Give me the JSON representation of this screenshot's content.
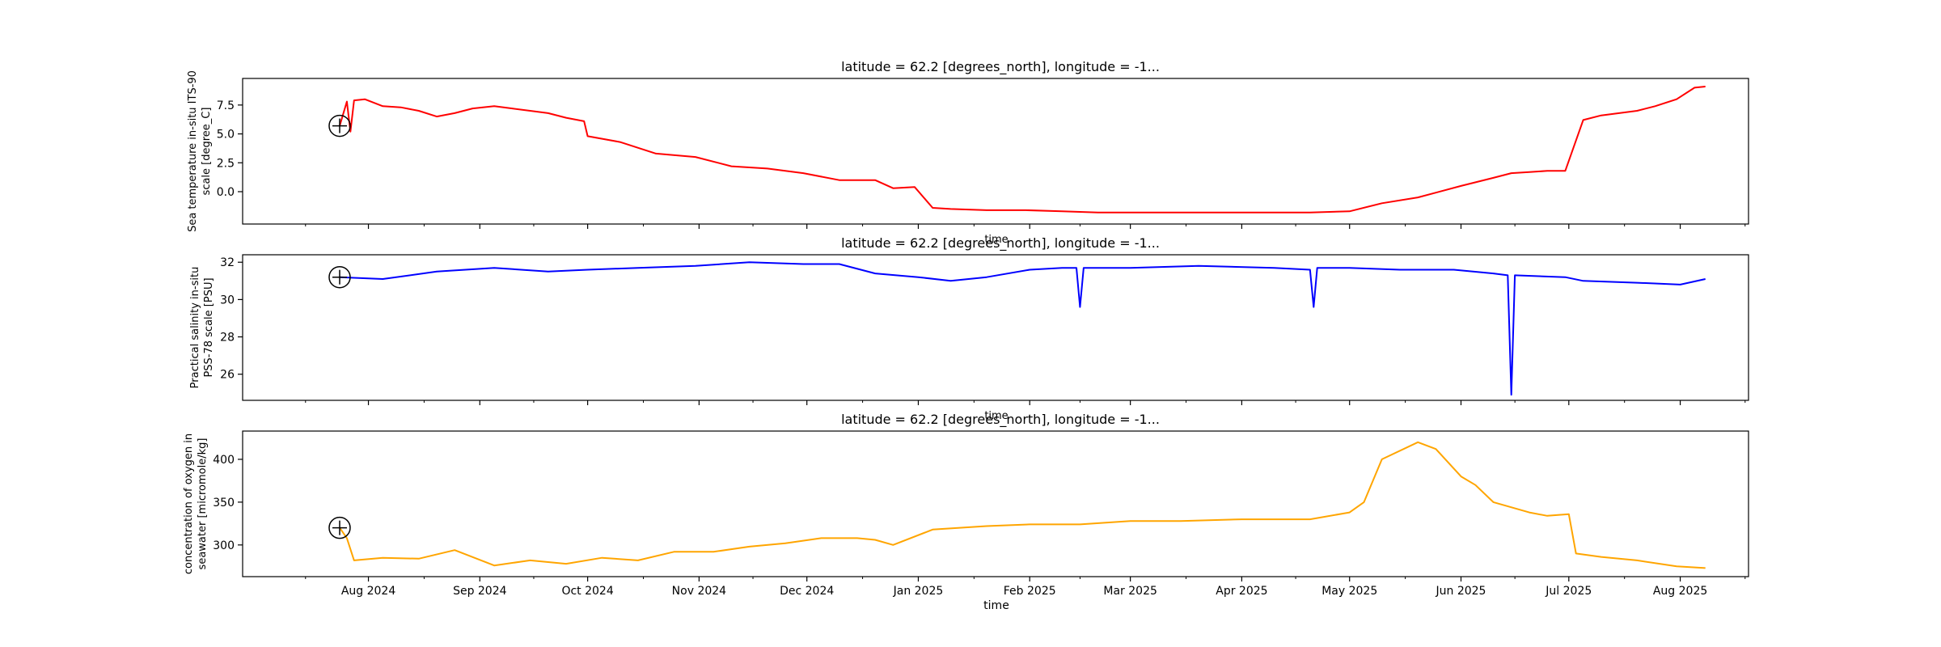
{
  "chart_data": [
    {
      "type": "line",
      "title": "latitude = 62.2 [degrees_north], longitude = -1...",
      "xlabel": "time",
      "ylabel": [
        "Sea temperature in-situ ITS-90",
        "scale [degree_C]"
      ],
      "x_range": [
        "2024-06-27",
        "2025-08-20"
      ],
      "ylim": [
        -2.8,
        9.8
      ],
      "yticks": [
        "0.0",
        "2.5",
        "5.0",
        "7.5"
      ],
      "color": "#ff0000",
      "marker": {
        "x": "2024-07-24",
        "y": 5.7
      },
      "series": [
        {
          "x": [
            "2024-07-24",
            "2024-07-26",
            "2024-07-27",
            "2024-07-28",
            "2024-07-31",
            "2024-08-05",
            "2024-08-10",
            "2024-08-15",
            "2024-08-20",
            "2024-08-25",
            "2024-08-30",
            "2024-09-05",
            "2024-09-10",
            "2024-09-15",
            "2024-09-20",
            "2024-09-25",
            "2024-09-30",
            "2024-10-01",
            "2024-10-10",
            "2024-10-20",
            "2024-10-31",
            "2024-11-10",
            "2024-11-20",
            "2024-11-30",
            "2024-12-10",
            "2024-12-20",
            "2024-12-25",
            "2024-12-31",
            "2025-01-05",
            "2025-01-10",
            "2025-01-20",
            "2025-01-31",
            "2025-02-10",
            "2025-02-20",
            "2025-03-10",
            "2025-04-01",
            "2025-04-20",
            "2025-05-01",
            "2025-05-10",
            "2025-05-20",
            "2025-06-01",
            "2025-06-10",
            "2025-06-15",
            "2025-06-20",
            "2025-06-25",
            "2025-06-30",
            "2025-07-05",
            "2025-07-10",
            "2025-07-20",
            "2025-07-25",
            "2025-07-31",
            "2025-08-05",
            "2025-08-08"
          ],
          "values": [
            5.7,
            7.8,
            5.2,
            7.9,
            8.0,
            7.4,
            7.3,
            7.0,
            6.5,
            6.8,
            7.2,
            7.4,
            7.2,
            7.0,
            6.8,
            6.4,
            6.1,
            4.8,
            4.3,
            3.3,
            3.0,
            2.2,
            2.0,
            1.6,
            1.0,
            1.0,
            0.3,
            0.4,
            -1.4,
            -1.5,
            -1.6,
            -1.6,
            -1.7,
            -1.8,
            -1.8,
            -1.8,
            -1.8,
            -1.7,
            -1.0,
            -0.5,
            0.5,
            1.2,
            1.6,
            1.7,
            1.8,
            1.8,
            6.2,
            6.6,
            7.0,
            7.4,
            8.0,
            9.0,
            9.1
          ]
        }
      ]
    },
    {
      "type": "line",
      "title": "latitude = 62.2 [degrees_north], longitude = -1...",
      "xlabel": "time",
      "ylabel": [
        "Practical salinity in-situ",
        "PSS-78 scale [PSU]"
      ],
      "x_range": [
        "2024-06-27",
        "2025-08-20"
      ],
      "ylim": [
        24.6,
        32.4
      ],
      "yticks": [
        "26",
        "28",
        "30",
        "32"
      ],
      "color": "#0000ff",
      "marker": {
        "x": "2024-07-24",
        "y": 31.2
      },
      "series": [
        {
          "x": [
            "2024-07-24",
            "2024-08-05",
            "2024-08-20",
            "2024-09-05",
            "2024-09-20",
            "2024-10-01",
            "2024-10-15",
            "2024-10-31",
            "2024-11-15",
            "2024-11-30",
            "2024-12-10",
            "2024-12-20",
            "2025-01-01",
            "2025-01-10",
            "2025-01-20",
            "2025-02-01",
            "2025-02-10",
            "2025-02-14",
            "2025-02-15",
            "2025-02-16",
            "2025-03-01",
            "2025-03-20",
            "2025-04-10",
            "2025-04-20",
            "2025-04-21",
            "2025-04-22",
            "2025-05-01",
            "2025-05-15",
            "2025-05-30",
            "2025-06-10",
            "2025-06-14",
            "2025-06-15",
            "2025-06-16",
            "2025-06-30",
            "2025-07-05",
            "2025-07-20",
            "2025-08-01",
            "2025-08-08"
          ],
          "values": [
            31.2,
            31.1,
            31.5,
            31.7,
            31.5,
            31.6,
            31.7,
            31.8,
            32.0,
            31.9,
            31.9,
            31.4,
            31.2,
            31.0,
            31.2,
            31.6,
            31.7,
            31.7,
            29.6,
            31.7,
            31.7,
            31.8,
            31.7,
            31.6,
            29.6,
            31.7,
            31.7,
            31.6,
            31.6,
            31.4,
            31.3,
            24.9,
            31.3,
            31.2,
            31.0,
            30.9,
            30.8,
            31.1
          ]
        }
      ]
    },
    {
      "type": "line",
      "title": "latitude = 62.2 [degrees_north], longitude = -1...",
      "xlabel": "time",
      "ylabel": [
        "concentration of oxygen in",
        "seawater [micromole/kg]"
      ],
      "x_range": [
        "2024-06-27",
        "2025-08-20"
      ],
      "ylim": [
        263,
        433
      ],
      "yticks": [
        "300",
        "350",
        "400"
      ],
      "xticks": [
        "Aug 2024",
        "Sep 2024",
        "Oct 2024",
        "Nov 2024",
        "Dec 2024",
        "Jan 2025",
        "Feb 2025",
        "Mar 2025",
        "Apr 2025",
        "May 2025",
        "Jun 2025",
        "Jul 2025",
        "Aug 2025"
      ],
      "color": "#ffa500",
      "marker": {
        "x": "2024-07-24",
        "y": 320
      },
      "series": [
        {
          "x": [
            "2024-07-24",
            "2024-07-26",
            "2024-07-28",
            "2024-08-05",
            "2024-08-15",
            "2024-08-25",
            "2024-09-05",
            "2024-09-15",
            "2024-09-25",
            "2024-10-05",
            "2024-10-15",
            "2024-10-25",
            "2024-11-05",
            "2024-11-15",
            "2024-11-25",
            "2024-12-05",
            "2024-12-15",
            "2024-12-20",
            "2024-12-25",
            "2025-01-05",
            "2025-01-20",
            "2025-02-01",
            "2025-02-15",
            "2025-03-01",
            "2025-03-15",
            "2025-04-01",
            "2025-04-15",
            "2025-04-20",
            "2025-05-01",
            "2025-05-05",
            "2025-05-10",
            "2025-05-20",
            "2025-05-25",
            "2025-06-01",
            "2025-06-05",
            "2025-06-10",
            "2025-06-20",
            "2025-06-25",
            "2025-07-01",
            "2025-07-03",
            "2025-07-10",
            "2025-07-20",
            "2025-07-31",
            "2025-08-08"
          ],
          "values": [
            320,
            308,
            282,
            285,
            284,
            294,
            276,
            282,
            278,
            285,
            282,
            292,
            292,
            298,
            302,
            308,
            308,
            306,
            300,
            318,
            322,
            324,
            324,
            328,
            328,
            330,
            330,
            330,
            338,
            350,
            400,
            420,
            412,
            380,
            370,
            350,
            338,
            334,
            336,
            290,
            286,
            282,
            275,
            273
          ]
        }
      ]
    }
  ]
}
